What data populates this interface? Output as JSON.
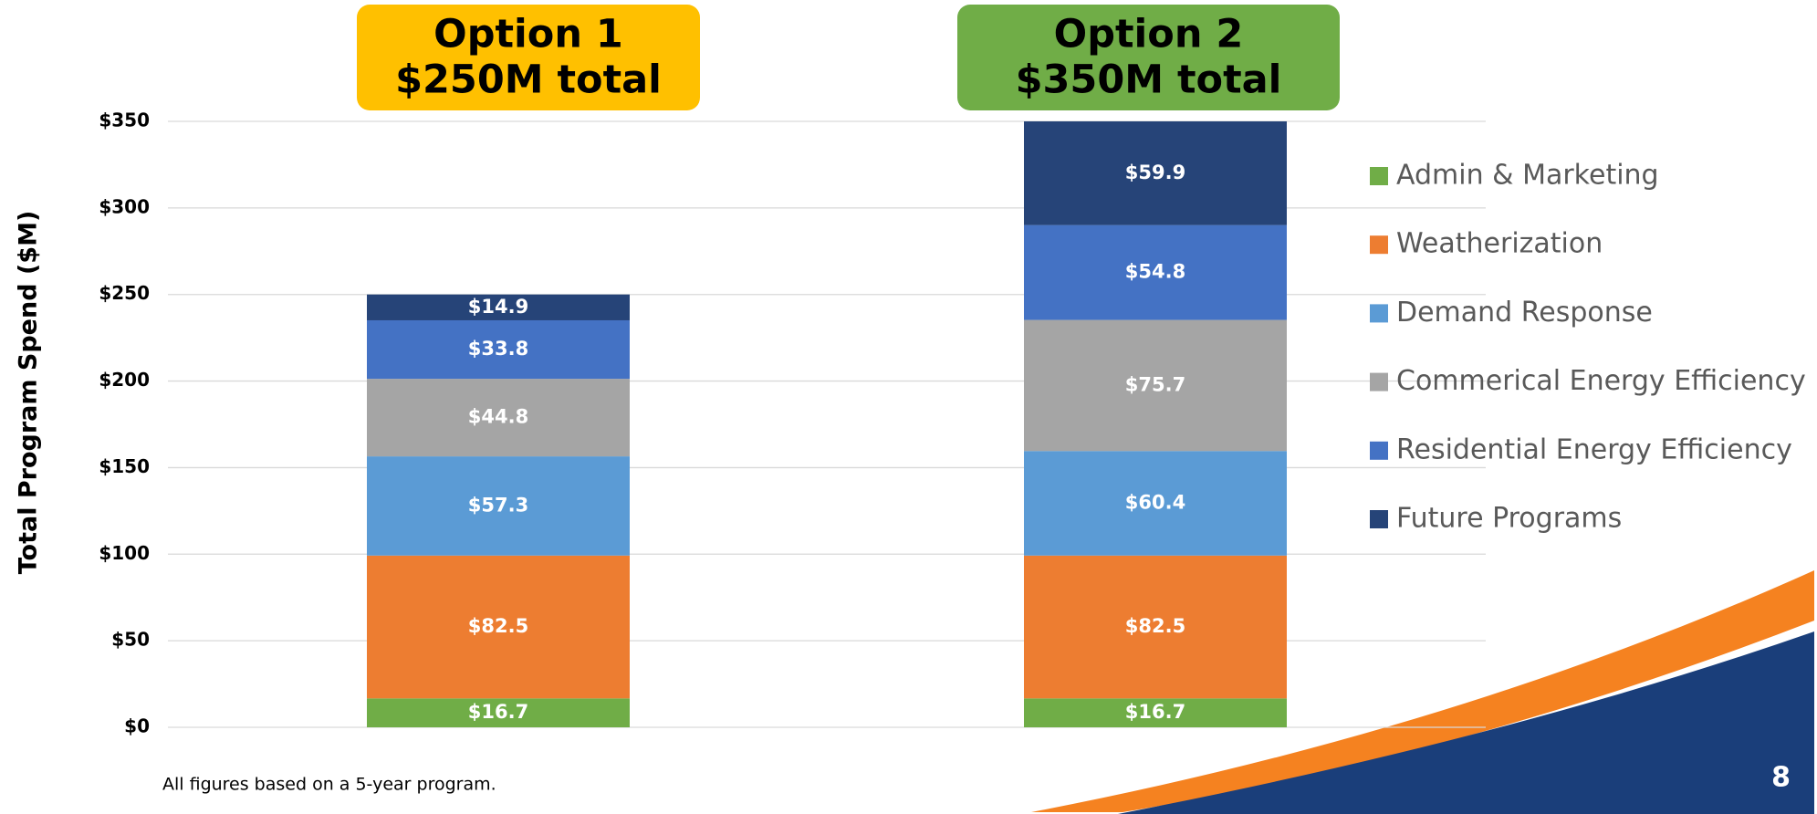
{
  "chart_data": {
    "type": "stacked_bar",
    "y_label": "Total Program Spend ($M)",
    "categories": [
      "Option 1",
      "Option 2"
    ],
    "category_totals": [
      "$250M total",
      "$350M total"
    ],
    "ylim": [
      0,
      350
    ],
    "yticks": [
      {
        "value": 0,
        "label": "$0"
      },
      {
        "value": 50,
        "label": "$50"
      },
      {
        "value": 100,
        "label": "$100"
      },
      {
        "value": 150,
        "label": "$150"
      },
      {
        "value": 200,
        "label": "$200"
      },
      {
        "value": 250,
        "label": "$250"
      },
      {
        "value": 300,
        "label": "$300"
      },
      {
        "value": 350,
        "label": "$350"
      }
    ],
    "grid": true,
    "legend": "right",
    "series": [
      {
        "name": "Admin & Marketing",
        "color": "#70ad47",
        "values": [
          16.7,
          16.7
        ],
        "value_labels": [
          "$16.7",
          "$16.7"
        ]
      },
      {
        "name": "Weatherization",
        "color": "#ed7d31",
        "values": [
          82.5,
          82.5
        ],
        "value_labels": [
          "$82.5",
          "$82.5"
        ]
      },
      {
        "name": "Demand Response",
        "color": "#5b9bd5",
        "values": [
          57.3,
          60.4
        ],
        "value_labels": [
          "$57.3",
          "$60.4"
        ]
      },
      {
        "name": "Commerical Energy Efficiency",
        "color": "#a5a5a5",
        "values": [
          44.8,
          75.7
        ],
        "value_labels": [
          "$44.8",
          "$75.7"
        ]
      },
      {
        "name": "Residential Energy Efficiency",
        "color": "#4472c4",
        "values": [
          33.8,
          54.8
        ],
        "value_labels": [
          "$33.8",
          "$54.8"
        ]
      },
      {
        "name": "Future Programs",
        "color": "#264478",
        "values": [
          14.9,
          59.9
        ],
        "value_labels": [
          "$14.9",
          "$59.9"
        ]
      }
    ],
    "footnote": "All figures based on a 5-year program.",
    "page_number": "8"
  }
}
